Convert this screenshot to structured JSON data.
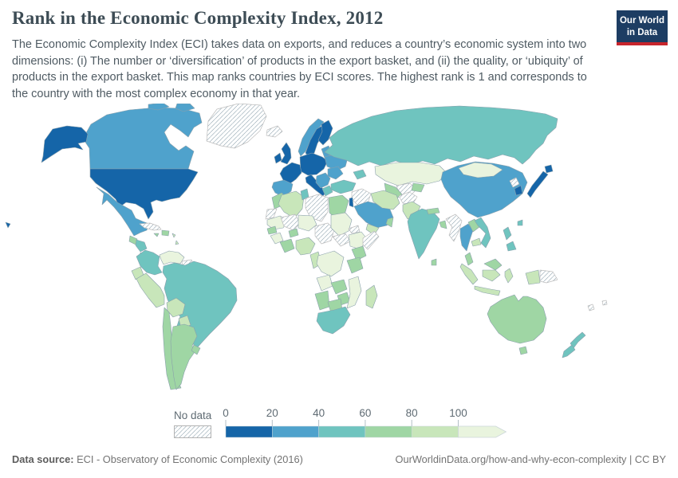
{
  "header": {
    "title": "Rank in the Economic Complexity Index, 2012",
    "subtitle": "The Economic Complexity Index (ECI) takes data on exports, and reduces a country’s economic system into two dimensions: (i) The number or ‘diversification’ of products in the export basket, and (ii) the quality, or ‘ubiquity’ of products in the export basket. This map ranks countries by ECI scores. The highest rank is 1 and corresponds to the country with the most complex economy in that year.",
    "logo_line1": "Our World",
    "logo_line2": "in Data"
  },
  "colors": {
    "logo_bg": "#1d3d63",
    "logo_accent": "#c7252c",
    "title_text": "#3d4c55",
    "border": "#8aa0ac",
    "nodata_hatch": "#d2d2d2"
  },
  "legend": {
    "no_data_label": "No data",
    "ticks": [
      "0",
      "20",
      "40",
      "60",
      "80",
      "100"
    ]
  },
  "footer": {
    "source_label": "Data source:",
    "source_text": " ECI - Observatory of Economic Complexity (2016)",
    "credit": "OurWorldinData.org/how-and-why-econ-complexity | CC BY"
  },
  "chart_data": {
    "type": "choropleth",
    "title": "Rank in the Economic Complexity Index, 2012",
    "unit": "ECI rank (1 = most complex economy)",
    "legend_bins": [
      {
        "range": "0-20",
        "color": "#1565a8"
      },
      {
        "range": "20-40",
        "color": "#4fa2cc"
      },
      {
        "range": "40-60",
        "color": "#6fc4bf"
      },
      {
        "range": "60-80",
        "color": "#9fd6a4"
      },
      {
        "range": "80-100",
        "color": "#c8e6ba"
      },
      {
        "range": "100+",
        "color": "#e9f4de"
      },
      {
        "range": "no-data",
        "color": "hatch"
      }
    ],
    "regions": {
      "united-states": "0-20",
      "canada": "20-40",
      "greenland": "no-data",
      "mexico": "20-40",
      "guatemala": "60-80",
      "honduras-nicaragua": "40-60",
      "costa-rica": "60-80",
      "panama": "0-20",
      "cuba": "no-data",
      "jamaica": "60-80",
      "hispaniola": "60-80",
      "lesser-antilles": "80-100",
      "colombia": "40-60",
      "venezuela": "100+",
      "guyana-suriname": "no-data",
      "ecuador": "80-100",
      "peru": "80-100",
      "brazil": "40-60",
      "bolivia": "80-100",
      "paraguay": "80-100",
      "chile": "60-80",
      "argentina": "60-80",
      "uruguay": "60-80",
      "iceland": "no-data",
      "united-kingdom": "0-20",
      "ireland": "0-20",
      "norway": "20-40",
      "sweden": "0-20",
      "finland": "0-20",
      "denmark": "0-20",
      "baltics": "20-40",
      "central-europe": "0-20",
      "france": "0-20",
      "iberia": "20-40",
      "italy": "0-20",
      "balkans": "20-40",
      "greece": "40-60",
      "ukraine-belarus": "20-40",
      "romania-bulgaria": "20-40",
      "russia": "40-60",
      "kazakhstan": "100+",
      "uzbekistan": "no-data",
      "turkmenistan": "60-80",
      "kyrgyzstan-tajikistan": "60-80",
      "caucasus": "40-60",
      "turkey": "40-60",
      "syria-iraq": "no-data",
      "israel": "0-20",
      "saudi-arabia": "20-40",
      "yemen": "80-100",
      "oman": "60-80",
      "iran": "80-100",
      "afghanistan": "no-data",
      "pakistan": "80-100",
      "morocco": "60-80",
      "western-sahara": "no-data",
      "algeria": "80-100",
      "tunisia": "40-60",
      "libya": "no-data",
      "egypt": "60-80",
      "mauritania": "100+",
      "mali": "no-data",
      "niger": "100+",
      "burkina-faso": "60-80",
      "senegal": "60-80",
      "guinea": "100+",
      "cote-divoire-ghana": "60-80",
      "nigeria": "80-100",
      "cameroon-gabon": "80-100",
      "chad": "no-data",
      "sudan": "100+",
      "south-sudan": "no-data",
      "eritrea": "no-data",
      "ethiopia": "100+",
      "somalia": "no-data",
      "kenya": "60-80",
      "tanzania": "60-80",
      "dr-congo": "100+",
      "angola": "100+",
      "zambia": "60-80",
      "zimbabwe": "60-80",
      "mozambique": "100+",
      "namibia": "60-80",
      "botswana": "60-80",
      "south-africa": "40-60",
      "madagascar": "80-100",
      "india": "40-60",
      "sri-lanka": "60-80",
      "nepal": "60-80",
      "bangladesh": "60-80",
      "mongolia": "100+",
      "china": "20-40",
      "north-korea": "no-data",
      "south-korea": "0-20",
      "japan": "0-20",
      "taiwan": "40-60",
      "myanmar": "no-data",
      "thailand": "20-40",
      "laos": "60-80",
      "cambodia": "80-100",
      "vietnam": "40-60",
      "malaysia": "60-80",
      "indonesia": "80-100",
      "philippines": "40-60",
      "papua-new-guinea": "no-data",
      "australia": "60-80",
      "new-zealand": "40-60",
      "fiji-newcaledonia": "no-data"
    }
  }
}
